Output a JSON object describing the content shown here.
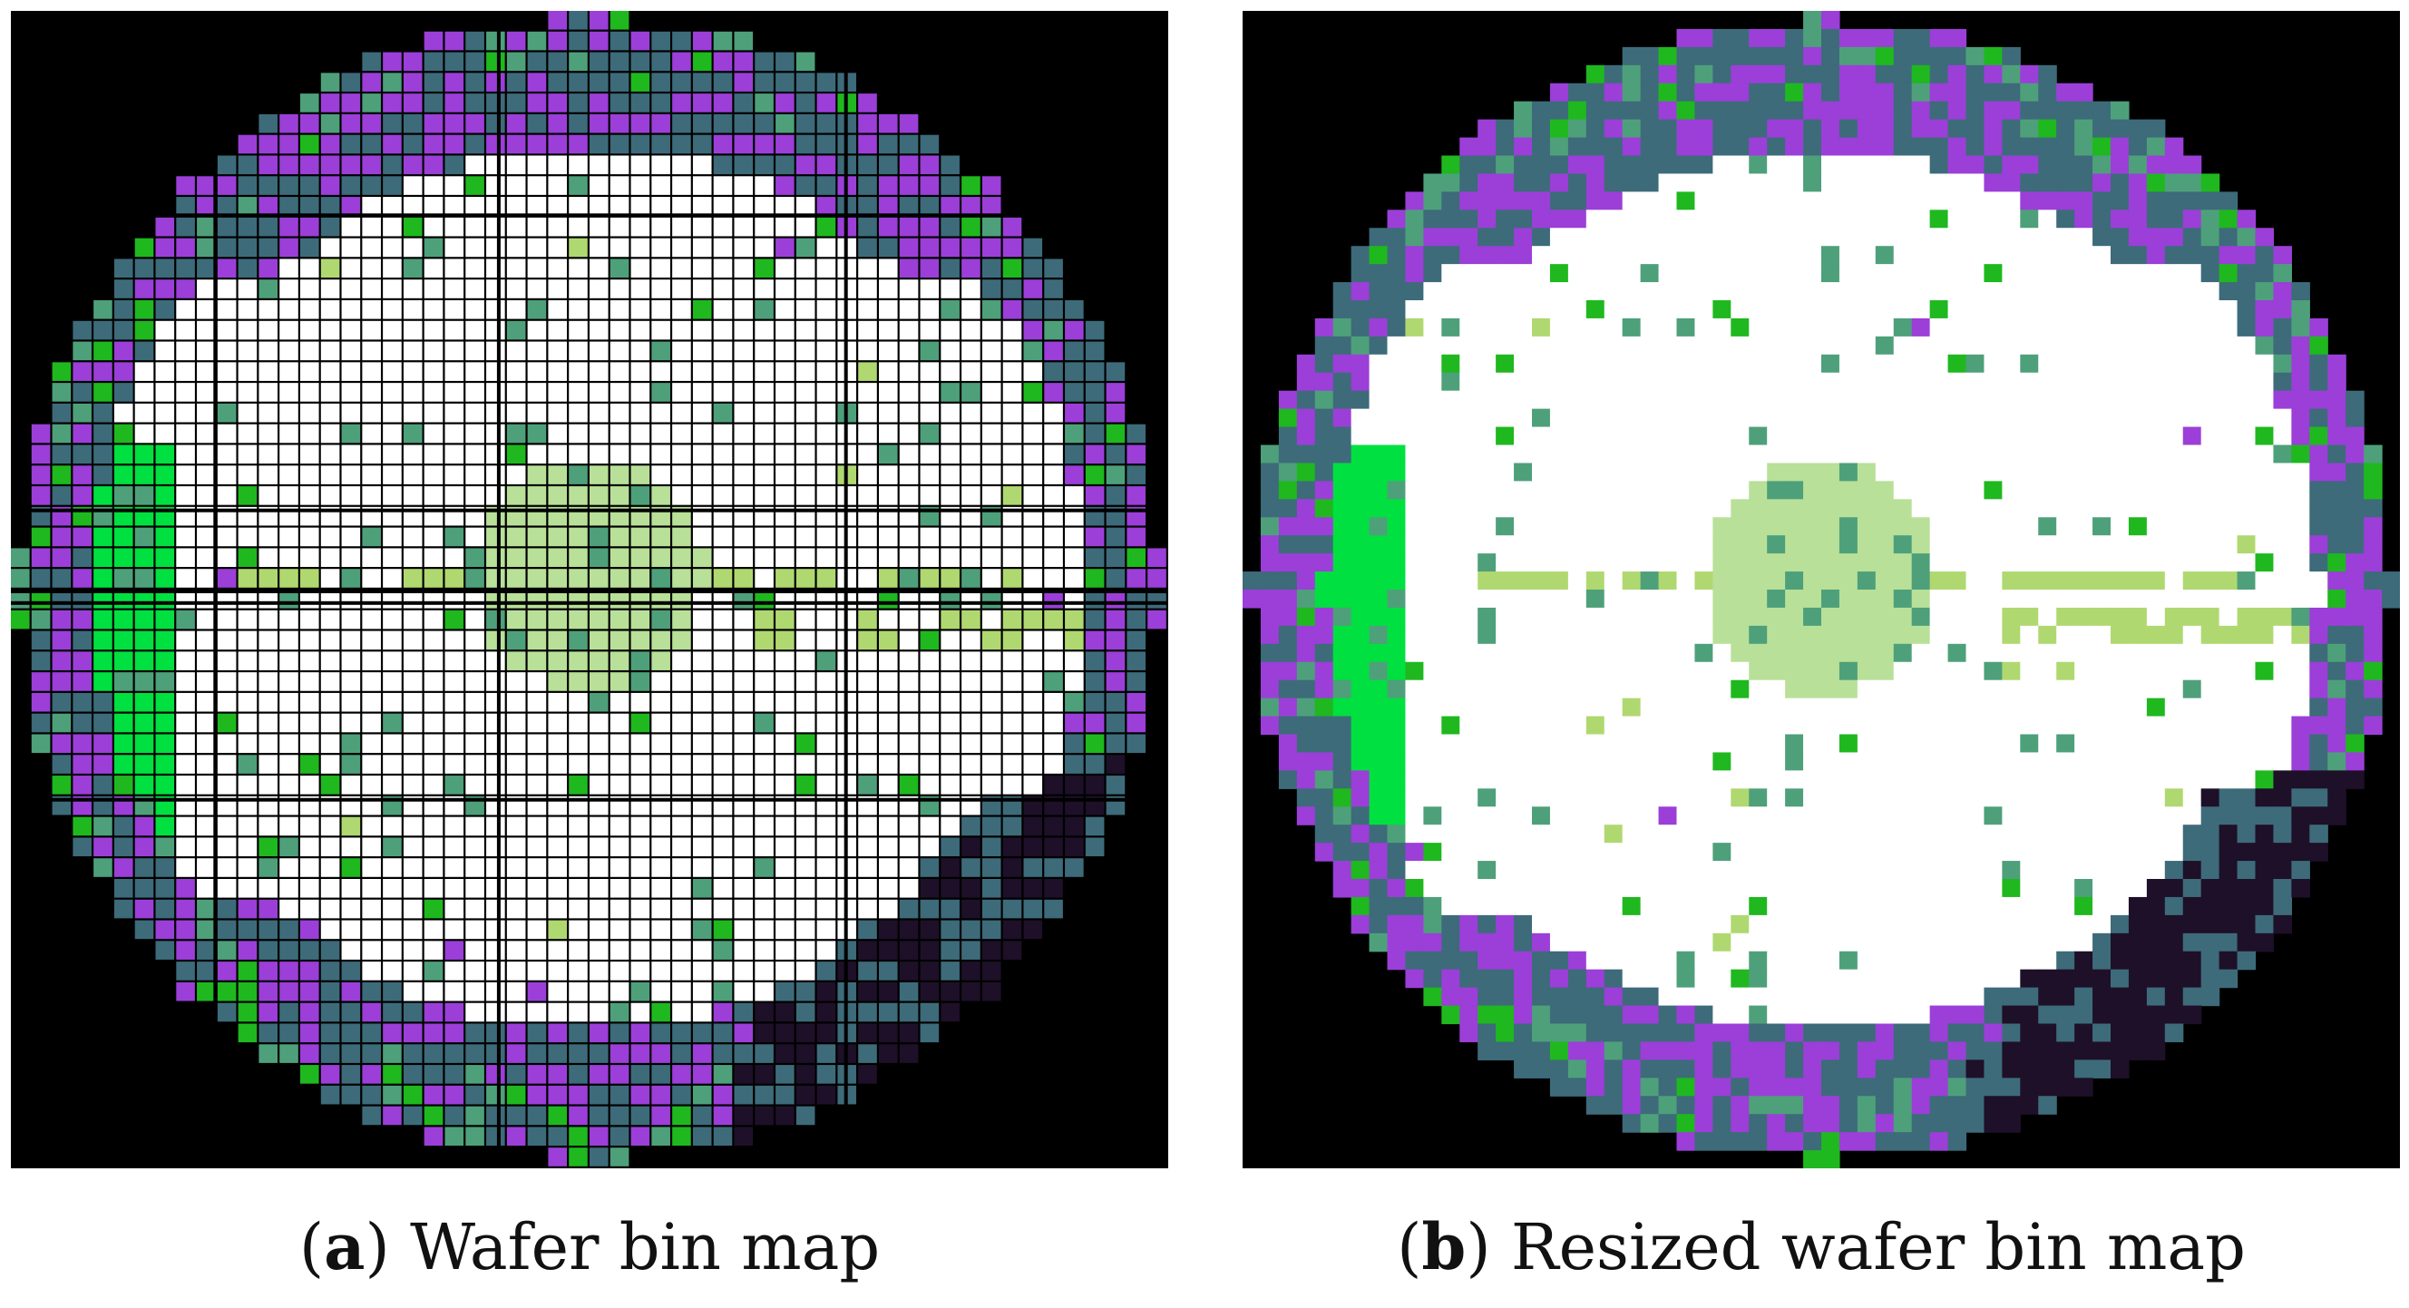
{
  "figure": {
    "panels": [
      {
        "id": "a",
        "letter": "a",
        "caption": "Wafer bin map",
        "grid": 56
      },
      {
        "id": "b",
        "letter": "b",
        "caption": "Resized wafer bin map",
        "grid": 64
      }
    ]
  },
  "colors": {
    "background": "#000000",
    "pass_die": "#ffffff",
    "grid_line": "#000000",
    "edge_fail_1": "#9b3fd8",
    "edge_fail_2": "#3d6b7a",
    "edge_fail_dark": "#1e1028",
    "random_fail_1": "#4ea07a",
    "random_fail_2": "#1fb81f",
    "left_cluster": "#00e040",
    "center_cluster": "#b8e098",
    "stripe": "#b0d870"
  }
}
